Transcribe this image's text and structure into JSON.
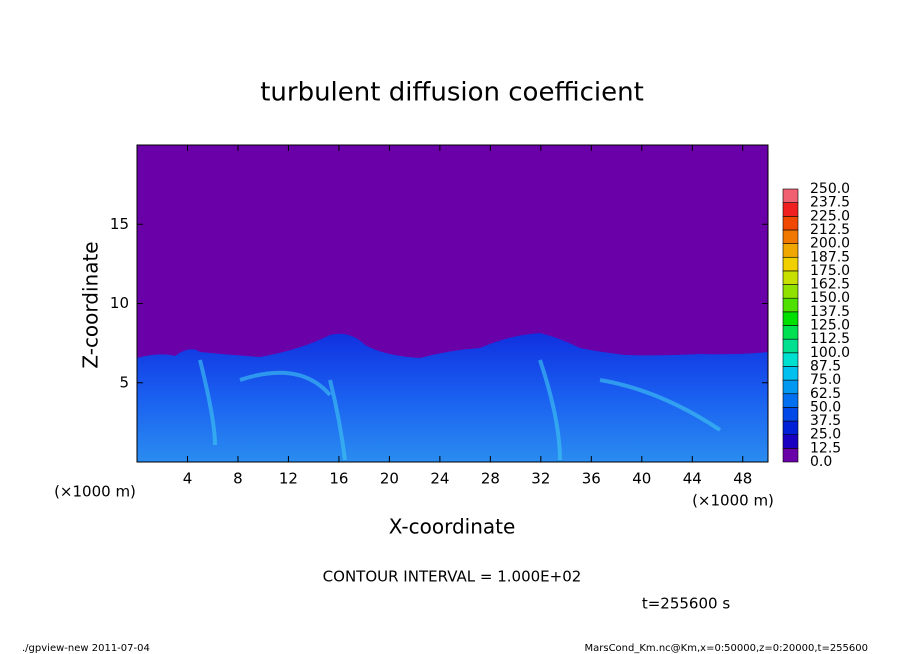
{
  "chart_data": {
    "type": "heatmap",
    "title": "turbulent diffusion coefficient",
    "xlabel": "X-coordinate",
    "ylabel": "Z-coordinate",
    "x_unit": "(×1000 m)",
    "xlim": [
      0,
      50
    ],
    "xticks": [
      4,
      8,
      12,
      16,
      20,
      24,
      28,
      32,
      36,
      40,
      44,
      48
    ],
    "ylim": [
      0,
      20
    ],
    "yticks": [
      5,
      10,
      15
    ],
    "colorbar": {
      "levels": [
        {
          "value": 0,
          "label": "0.0"
        },
        {
          "value": 12.5,
          "label": "12.5"
        },
        {
          "value": 25,
          "label": "25.0"
        },
        {
          "value": 37.5,
          "label": "37.5"
        },
        {
          "value": 50,
          "label": "50.0"
        },
        {
          "value": 62.5,
          "label": "62.5"
        },
        {
          "value": 75,
          "label": "75.0"
        },
        {
          "value": 87.5,
          "label": "87.5"
        },
        {
          "value": 100,
          "label": "100.0"
        },
        {
          "value": 112.5,
          "label": "112.5"
        },
        {
          "value": 125,
          "label": "125.0"
        },
        {
          "value": 137.5,
          "label": "137.5"
        },
        {
          "value": 150,
          "label": "150.0"
        },
        {
          "value": 162.5,
          "label": "162.5"
        },
        {
          "value": 175,
          "label": "175.0"
        },
        {
          "value": 187.5,
          "label": "187.5"
        },
        {
          "value": 200,
          "label": "200.0"
        },
        {
          "value": 212.5,
          "label": "212.5"
        },
        {
          "value": 225,
          "label": "225.0"
        },
        {
          "value": 237.5,
          "label": "237.5"
        },
        {
          "value": 250,
          "label": "250.0"
        }
      ],
      "colors": [
        "#6a00a8",
        "#1a00c0",
        "#0020d8",
        "#0048e8",
        "#0070f0",
        "#0098f0",
        "#00c0f0",
        "#00e0d0",
        "#00e090",
        "#00e050",
        "#00e000",
        "#50e000",
        "#90e000",
        "#c8e000",
        "#f0d000",
        "#f0a800",
        "#f07800",
        "#f04800",
        "#f02020",
        "#f06070"
      ]
    },
    "annotations": [
      "CONTOUR INTERVAL = 1.000E+02",
      "t=255600 s",
      "./gpview-new  2011-07-04",
      "MarsCond_Km.nc@Km,x=0:50000,z=0:20000,t=255600"
    ]
  }
}
